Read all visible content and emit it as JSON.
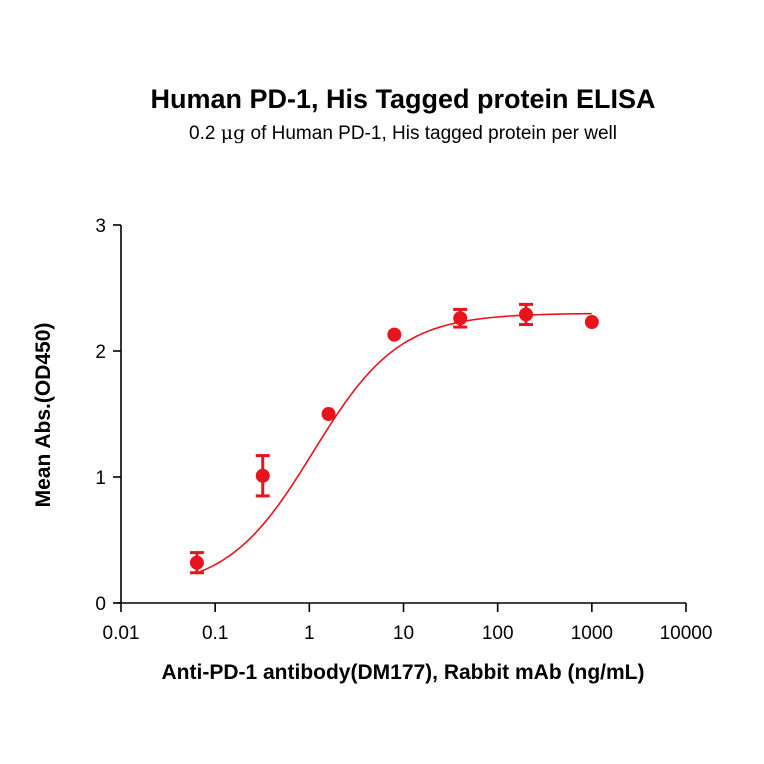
{
  "chart_data": {
    "type": "scatter",
    "title": "Human PD-1, His Tagged protein ELISA",
    "subtitle_prefix": "0.2 ",
    "subtitle_unit": "μg",
    "subtitle_suffix": " of Human PD-1, His tagged protein per well",
    "xlabel": "Anti-PD-1 antibody(DM177), Rabbit mAb (ng/mL)",
    "ylabel": "Mean Abs.(OD450)",
    "x_scale": "log",
    "xlim": [
      0.01,
      10000
    ],
    "ylim": [
      0,
      3
    ],
    "x_ticks": [
      0.01,
      0.1,
      1,
      10,
      100,
      1000,
      10000
    ],
    "x_tick_labels": [
      "0.01",
      "0.1",
      "1",
      "10",
      "100",
      "1000",
      "10000"
    ],
    "y_ticks": [
      0,
      1,
      2,
      3
    ],
    "y_tick_labels": [
      "0",
      "1",
      "2",
      "3"
    ],
    "grid": false,
    "series": [
      {
        "color": "#e8141c",
        "points": [
          {
            "x": 0.064,
            "y": 0.32,
            "err": 0.08
          },
          {
            "x": 0.32,
            "y": 1.01,
            "err": 0.16
          },
          {
            "x": 1.6,
            "y": 1.5,
            "err": 0.02
          },
          {
            "x": 8.0,
            "y": 2.13,
            "err": 0.02
          },
          {
            "x": 40,
            "y": 2.26,
            "err": 0.07
          },
          {
            "x": 200,
            "y": 2.29,
            "err": 0.08
          },
          {
            "x": 1000,
            "y": 2.23,
            "err": 0.02
          }
        ],
        "fit": {
          "bottom": 0.1,
          "top": 2.3,
          "ec50": 1.1,
          "hill": 0.95
        }
      }
    ]
  }
}
